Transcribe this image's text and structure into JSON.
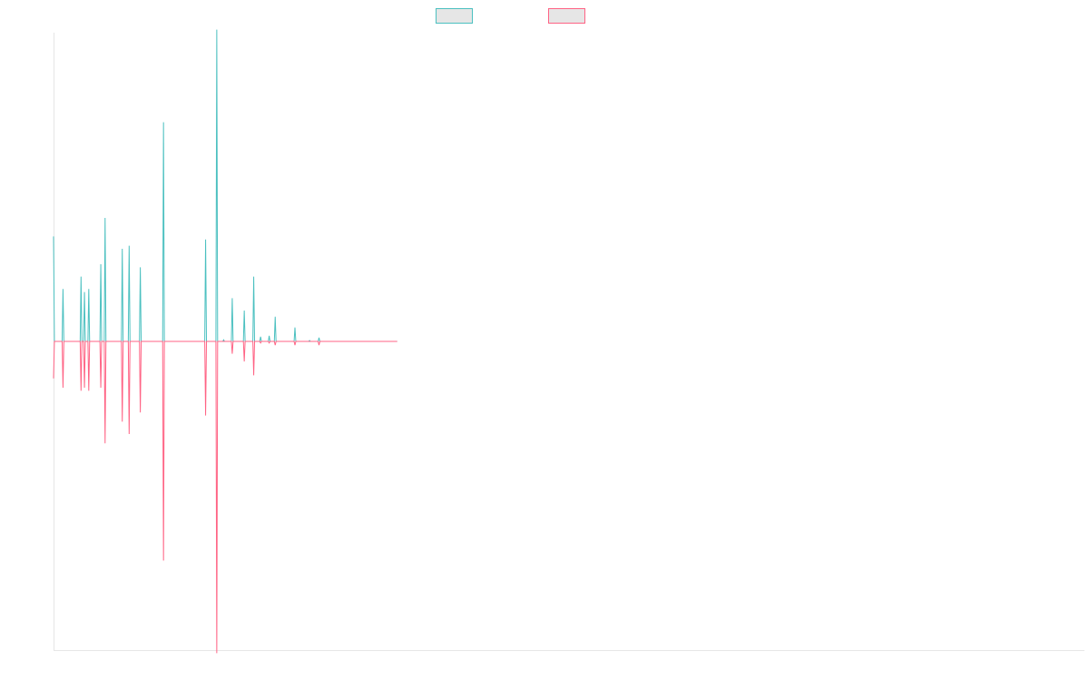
{
  "chart_data": {
    "type": "line",
    "title": "",
    "xlabel": "",
    "ylabel": "",
    "legend_position": "top-center",
    "grid": false,
    "x_range": [
      0,
      1200
    ],
    "ylim": [
      -100,
      100
    ],
    "series": [
      {
        "color": "#4bc0c0",
        "fill": "#e6e6e6",
        "points": [
          [
            0,
            34
          ],
          [
            1,
            0
          ],
          [
            10,
            0
          ],
          [
            11,
            17
          ],
          [
            12,
            0
          ],
          [
            31,
            0
          ],
          [
            32,
            21
          ],
          [
            33,
            0
          ],
          [
            35,
            0
          ],
          [
            36,
            16
          ],
          [
            37,
            0
          ],
          [
            40,
            0
          ],
          [
            41,
            17
          ],
          [
            42,
            0
          ],
          [
            54,
            0
          ],
          [
            55,
            25
          ],
          [
            56,
            0
          ],
          [
            59,
            0
          ],
          [
            60,
            40
          ],
          [
            61,
            0
          ],
          [
            79,
            0
          ],
          [
            80,
            30
          ],
          [
            81,
            0
          ],
          [
            87,
            0
          ],
          [
            88,
            31
          ],
          [
            89,
            0
          ],
          [
            100,
            0
          ],
          [
            101,
            24
          ],
          [
            102,
            0
          ],
          [
            127,
            0
          ],
          [
            128,
            71
          ],
          [
            129,
            0
          ],
          [
            176,
            0
          ],
          [
            177,
            33
          ],
          [
            178,
            0
          ],
          [
            189,
            0
          ],
          [
            190,
            101
          ],
          [
            191,
            0
          ],
          [
            197,
            0
          ],
          [
            198,
            0.5
          ],
          [
            199,
            0
          ],
          [
            207,
            0
          ],
          [
            208,
            14
          ],
          [
            209,
            0
          ],
          [
            221,
            0
          ],
          [
            222,
            10
          ],
          [
            223,
            0
          ],
          [
            232,
            0
          ],
          [
            233,
            21
          ],
          [
            234,
            0
          ],
          [
            240,
            0
          ],
          [
            241,
            1.5
          ],
          [
            242,
            0
          ],
          [
            250,
            0
          ],
          [
            251,
            1.8
          ],
          [
            252,
            0
          ],
          [
            257,
            0
          ],
          [
            258,
            8
          ],
          [
            259,
            0
          ],
          [
            280,
            0
          ],
          [
            281,
            4.5
          ],
          [
            282,
            0
          ],
          [
            297,
            0
          ],
          [
            298,
            0.3
          ],
          [
            299,
            0
          ],
          [
            308,
            0
          ],
          [
            309,
            1.2
          ],
          [
            310,
            0
          ],
          [
            400,
            0
          ]
        ]
      },
      {
        "color": "#ff6384",
        "fill": "#e6e6e6",
        "points": [
          [
            0,
            -12
          ],
          [
            1,
            0
          ],
          [
            10,
            0
          ],
          [
            11,
            -15
          ],
          [
            12,
            0
          ],
          [
            31,
            0
          ],
          [
            32,
            -16
          ],
          [
            33,
            0
          ],
          [
            35,
            0
          ],
          [
            36,
            -15
          ],
          [
            37,
            0
          ],
          [
            40,
            0
          ],
          [
            41,
            -16
          ],
          [
            42,
            0
          ],
          [
            54,
            0
          ],
          [
            55,
            -15
          ],
          [
            56,
            0
          ],
          [
            59,
            0
          ],
          [
            60,
            -33
          ],
          [
            61,
            0
          ],
          [
            79,
            0
          ],
          [
            80,
            -26
          ],
          [
            81,
            0
          ],
          [
            87,
            0
          ],
          [
            88,
            -30
          ],
          [
            89,
            0
          ],
          [
            100,
            0
          ],
          [
            101,
            -23
          ],
          [
            102,
            0
          ],
          [
            127,
            0
          ],
          [
            128,
            -71
          ],
          [
            129,
            0
          ],
          [
            176,
            0
          ],
          [
            177,
            -24
          ],
          [
            178,
            0
          ],
          [
            189,
            0
          ],
          [
            190,
            -101
          ],
          [
            191,
            0
          ],
          [
            207,
            0
          ],
          [
            208,
            -4
          ],
          [
            209,
            0
          ],
          [
            221,
            0
          ],
          [
            222,
            -6.5
          ],
          [
            223,
            0
          ],
          [
            232,
            0
          ],
          [
            233,
            -11
          ],
          [
            234,
            0
          ],
          [
            240,
            0
          ],
          [
            241,
            -0.5
          ],
          [
            242,
            0
          ],
          [
            250,
            0
          ],
          [
            251,
            -0.5
          ],
          [
            252,
            0
          ],
          [
            257,
            0
          ],
          [
            258,
            -1.2
          ],
          [
            259,
            0
          ],
          [
            280,
            0
          ],
          [
            281,
            -1.2
          ],
          [
            282,
            0
          ],
          [
            308,
            0
          ],
          [
            309,
            -1.2
          ],
          [
            310,
            0
          ],
          [
            400,
            0
          ]
        ]
      }
    ]
  }
}
